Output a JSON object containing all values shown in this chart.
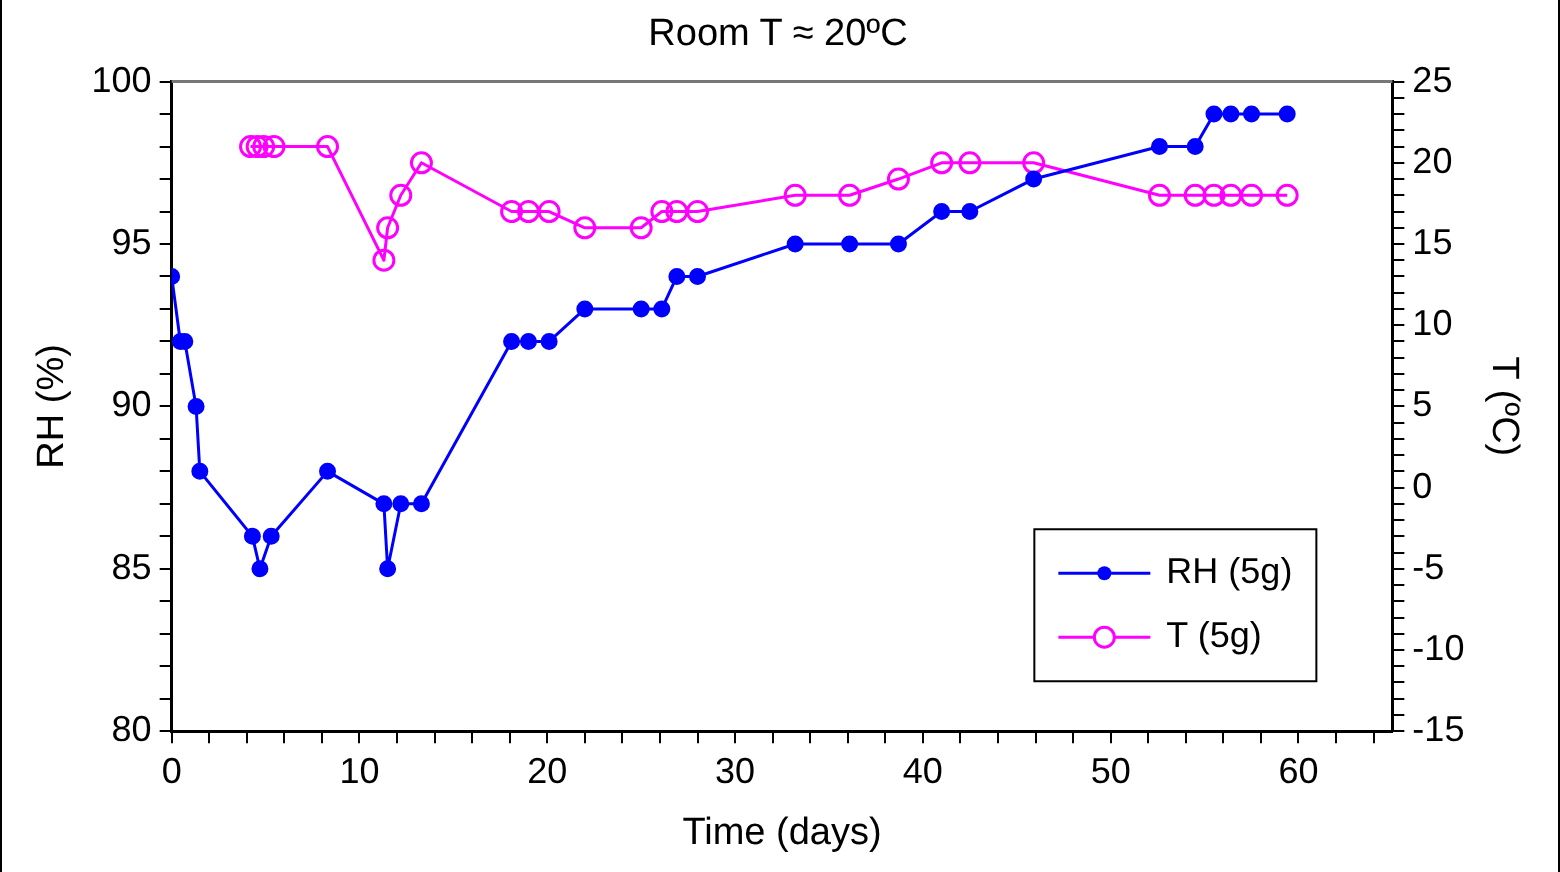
{
  "chart_data": {
    "type": "line",
    "title": "Room T ≈ 20ºC",
    "xlabel": "Time (days)",
    "ylabel": "RH (%)",
    "y2label": "T (ºC)",
    "xlim": [
      0,
      65
    ],
    "xticks": [
      0,
      {
        "value": 2,
        "label": null
      },
      {
        "value": 4,
        "label": null
      },
      {
        "value": 6,
        "label": null
      },
      {
        "value": 8,
        "label": null
      },
      10,
      {
        "value": 12,
        "label": null
      },
      {
        "value": 14,
        "label": null
      },
      {
        "value": 16,
        "label": null
      },
      {
        "value": 18,
        "label": null
      },
      20,
      {
        "value": 22,
        "label": null
      },
      {
        "value": 24,
        "label": null
      },
      {
        "value": 26,
        "label": null
      },
      {
        "value": 28,
        "label": null
      },
      30,
      {
        "value": 32,
        "label": null
      },
      {
        "value": 34,
        "label": null
      },
      {
        "value": 36,
        "label": null
      },
      {
        "value": 38,
        "label": null
      },
      40,
      {
        "value": 42,
        "label": null
      },
      {
        "value": 44,
        "label": null
      },
      {
        "value": 46,
        "label": null
      },
      {
        "value": 48,
        "label": null
      },
      50,
      {
        "value": 52,
        "label": null
      },
      {
        "value": 54,
        "label": null
      },
      {
        "value": 56,
        "label": null
      },
      {
        "value": 58,
        "label": null
      },
      60,
      {
        "value": 62,
        "label": null
      },
      {
        "value": 64,
        "label": null
      }
    ],
    "ylim": [
      80,
      100
    ],
    "yticks": [
      80,
      {
        "value": 81,
        "label": null
      },
      {
        "value": 82,
        "label": null
      },
      {
        "value": 83,
        "label": null
      },
      {
        "value": 84,
        "label": null
      },
      85,
      {
        "value": 86,
        "label": null
      },
      {
        "value": 87,
        "label": null
      },
      {
        "value": 88,
        "label": null
      },
      {
        "value": 89,
        "label": null
      },
      90,
      {
        "value": 91,
        "label": null
      },
      {
        "value": 92,
        "label": null
      },
      {
        "value": 93,
        "label": null
      },
      {
        "value": 94,
        "label": null
      },
      95,
      {
        "value": 96,
        "label": null
      },
      {
        "value": 97,
        "label": null
      },
      {
        "value": 98,
        "label": null
      },
      {
        "value": 99,
        "label": null
      },
      100
    ],
    "y2lim": [
      -15,
      25
    ],
    "y2ticks": [
      -15,
      {
        "value": -14,
        "label": null
      },
      {
        "value": -13,
        "label": null
      },
      {
        "value": -12,
        "label": null
      },
      {
        "value": -11,
        "label": null
      },
      -10,
      {
        "value": -9,
        "label": null
      },
      {
        "value": -8,
        "label": null
      },
      {
        "value": -7,
        "label": null
      },
      {
        "value": -6,
        "label": null
      },
      -5,
      {
        "value": -4,
        "label": null
      },
      {
        "value": -3,
        "label": null
      },
      {
        "value": -2,
        "label": null
      },
      {
        "value": -1,
        "label": null
      },
      0,
      {
        "value": 1,
        "label": null
      },
      {
        "value": 2,
        "label": null
      },
      {
        "value": 3,
        "label": null
      },
      {
        "value": 4,
        "label": null
      },
      5,
      {
        "value": 6,
        "label": null
      },
      {
        "value": 7,
        "label": null
      },
      {
        "value": 8,
        "label": null
      },
      {
        "value": 9,
        "label": null
      },
      10,
      {
        "value": 11,
        "label": null
      },
      {
        "value": 12,
        "label": null
      },
      {
        "value": 13,
        "label": null
      },
      {
        "value": 14,
        "label": null
      },
      15,
      {
        "value": 16,
        "label": null
      },
      {
        "value": 17,
        "label": null
      },
      {
        "value": 18,
        "label": null
      },
      {
        "value": 19,
        "label": null
      },
      20,
      {
        "value": 21,
        "label": null
      },
      {
        "value": 22,
        "label": null
      },
      {
        "value": 23,
        "label": null
      },
      {
        "value": 24,
        "label": null
      },
      25
    ],
    "grid": false,
    "legend": "bottom right",
    "marker": "circle",
    "line_style": "solid",
    "series": [
      {
        "name": "RH (5g)",
        "color": "#0000ff",
        "x": [
          0,
          0.46,
          0.7,
          1.3,
          1.5,
          4.3,
          4.7,
          5.3,
          8.3,
          11.3,
          11.5,
          12.2,
          13.3,
          18.1,
          19.0,
          20.1,
          22.0,
          25.0,
          26.1,
          26.9,
          28.0,
          33.2,
          36.1,
          38.7,
          41.0,
          42.5,
          45.9,
          52.6,
          54.5,
          55.5,
          56.4,
          57.5,
          59.4
        ],
        "values": [
          94,
          92,
          92,
          90,
          88,
          86,
          85,
          86,
          88,
          87,
          85,
          87,
          87,
          92,
          92,
          92,
          93,
          93,
          93,
          94,
          94,
          95,
          95,
          95,
          96,
          96,
          97,
          98,
          98,
          99,
          99,
          99,
          99
        ]
      },
      {
        "name": "T (5g)",
        "color": "#ff00ff",
        "axis": "y2",
        "x": [
          4.2,
          4.55,
          4.9,
          5.45,
          8.3,
          11.3,
          11.5,
          12.2,
          13.3,
          18.1,
          19.0,
          20.1,
          22.0,
          25.0,
          26.1,
          26.9,
          28.0,
          33.2,
          36.1,
          38.7,
          41.0,
          42.5,
          45.9,
          52.6,
          54.5,
          55.5,
          56.4,
          57.5,
          59.4
        ],
        "values": [
          21,
          21,
          21,
          21,
          21,
          14,
          16,
          18,
          20,
          17,
          17,
          17,
          16,
          16,
          17,
          17,
          17,
          18,
          18,
          19,
          20,
          20,
          20,
          18,
          18,
          18,
          18,
          18,
          18
        ]
      }
    ]
  }
}
